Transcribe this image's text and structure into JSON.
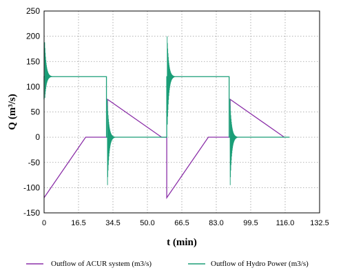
{
  "chart_data": {
    "type": "line",
    "xlabel": "t (min)",
    "ylabel": "Q (m³/s)",
    "xlim": [
      0,
      132.5
    ],
    "ylim": [
      -150,
      250
    ],
    "x_ticks": [
      "0",
      "16.5",
      "34.5",
      "50.0",
      "66.5",
      "83.0",
      "99.5",
      "116.0",
      "132.5"
    ],
    "y_ticks": [
      250,
      200,
      150,
      100,
      50,
      0,
      -50,
      -100,
      -150
    ],
    "grid": true,
    "legend_position": "bottom",
    "series": [
      {
        "name": "Outflow of ACUR system (m3/s)",
        "color": "#8b2fa8",
        "points": [
          [
            0,
            -120
          ],
          [
            20,
            0
          ],
          [
            30.5,
            0
          ],
          [
            30.5,
            75
          ],
          [
            56.5,
            0
          ],
          [
            59,
            0
          ],
          [
            59,
            -120
          ],
          [
            79,
            0
          ],
          [
            89.5,
            0
          ],
          [
            89.5,
            75
          ],
          [
            115.5,
            0
          ]
        ]
      },
      {
        "name": "Outflow of Hydro Power (m3/s)",
        "color": "#1a9e77",
        "points": [
          [
            0,
            75
          ],
          [
            0,
            120
          ],
          [
            30,
            120
          ],
          [
            30,
            0
          ],
          [
            56.5,
            0
          ],
          [
            59,
            0
          ],
          [
            59,
            120
          ],
          [
            89,
            120
          ],
          [
            89,
            0
          ],
          [
            118,
            0
          ]
        ],
        "oscillations": [
          {
            "t": 0.3,
            "base": 120,
            "peak": 188,
            "trough": 78
          },
          {
            "t": 30.4,
            "base": 0,
            "peak": 75,
            "trough": -95
          },
          {
            "t": 59.2,
            "base": 120,
            "peak": 200,
            "trough": 25
          },
          {
            "t": 89.4,
            "base": 0,
            "peak": 75,
            "trough": -95
          }
        ]
      }
    ]
  }
}
